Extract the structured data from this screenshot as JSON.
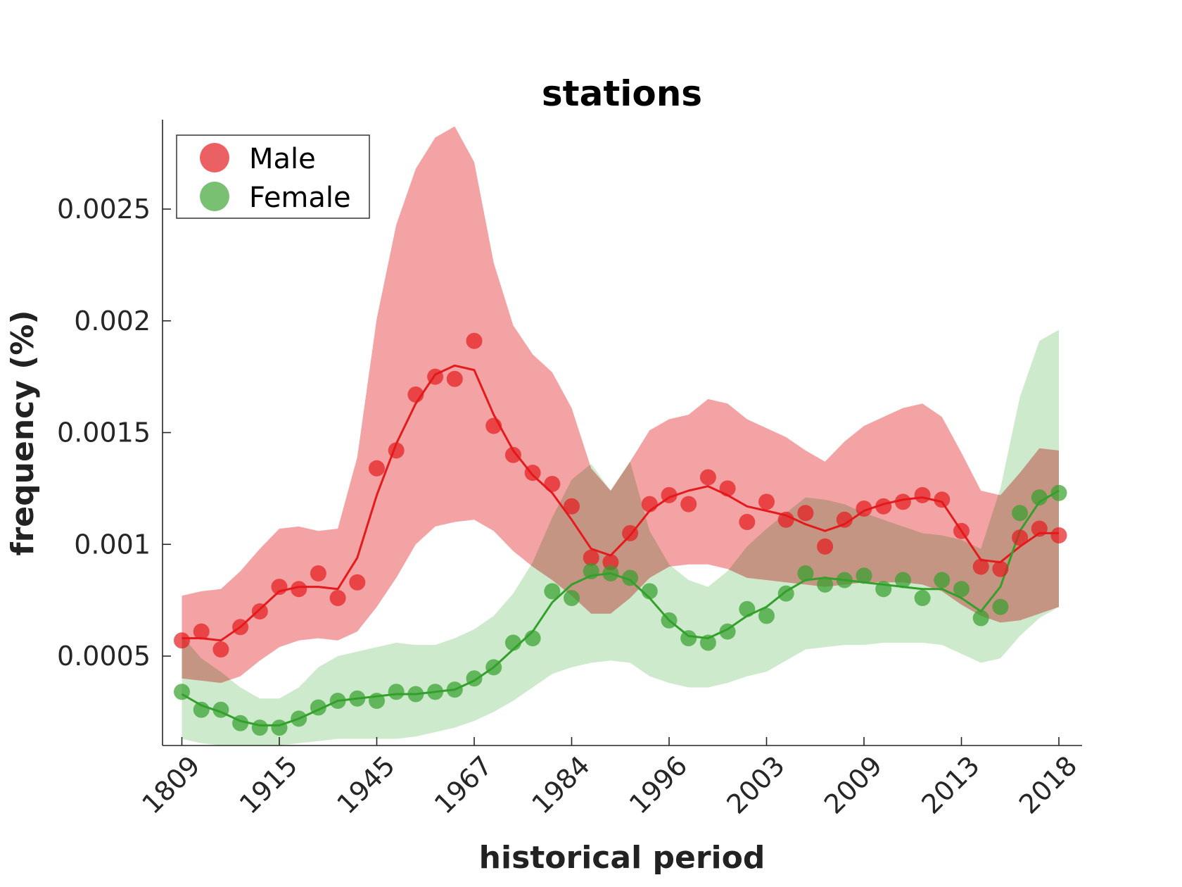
{
  "chart_data": {
    "type": "line",
    "title": "stations",
    "xlabel": "historical period",
    "ylabel": "frequency (%)",
    "ylim": [
      0.0001,
      0.0029
    ],
    "grid": false,
    "legend_placement": "top-left",
    "x_tick_labels": [
      "1809",
      "1915",
      "1945",
      "1967",
      "1984",
      "1996",
      "2003",
      "2009",
      "2013",
      "2018"
    ],
    "y_ticks": [
      0.0005,
      0.001,
      0.0015,
      0.002,
      0.0025
    ],
    "y_tick_labels": [
      "0.0005",
      "0.001",
      "0.0015",
      "0.002",
      "0.0025"
    ],
    "series": [
      {
        "name": "Male",
        "color": "#e41a1c",
        "band_color": "#f4a3a4",
        "points": [
          0.00057,
          0.00061,
          0.00053,
          0.00063,
          0.0007,
          0.00081,
          0.0008,
          0.00087,
          0.00076,
          0.00083,
          0.00134,
          0.00142,
          0.00167,
          0.00175,
          0.00174,
          0.00191,
          0.00153,
          0.0014,
          0.00132,
          0.00127,
          0.00117,
          0.00094,
          0.00092,
          0.00105,
          0.00118,
          0.00122,
          0.00118,
          0.0013,
          0.00125,
          0.0011,
          0.00119,
          0.00111,
          0.00114,
          0.00099,
          0.00111,
          0.00116,
          0.00117,
          0.00119,
          0.00122,
          0.0012,
          0.00106,
          0.0009,
          0.00089,
          0.00103,
          0.00107,
          0.00104
        ],
        "line": [
          0.00058,
          0.00058,
          0.00057,
          0.00063,
          0.00071,
          0.00079,
          0.00081,
          0.00081,
          0.0008,
          0.00094,
          0.00122,
          0.00145,
          0.00163,
          0.00176,
          0.0018,
          0.00178,
          0.00158,
          0.00142,
          0.00131,
          0.00123,
          0.00111,
          0.00098,
          0.00095,
          0.00104,
          0.00115,
          0.00121,
          0.00124,
          0.00126,
          0.00122,
          0.00117,
          0.00115,
          0.00113,
          0.00109,
          0.00106,
          0.00109,
          0.00115,
          0.00118,
          0.0012,
          0.00121,
          0.00119,
          0.00106,
          0.00093,
          0.00092,
          0.00099,
          0.00105,
          0.00105
        ],
        "band_upper": [
          0.00077,
          0.00079,
          0.0008,
          0.00088,
          0.00098,
          0.00107,
          0.00108,
          0.00106,
          0.00107,
          0.00139,
          0.00201,
          0.00243,
          0.00268,
          0.00282,
          0.00287,
          0.00271,
          0.00226,
          0.00198,
          0.00185,
          0.00177,
          0.00161,
          0.00134,
          0.00124,
          0.00137,
          0.00151,
          0.00156,
          0.00158,
          0.00165,
          0.00163,
          0.00156,
          0.00152,
          0.00148,
          0.00142,
          0.00137,
          0.00146,
          0.00153,
          0.00157,
          0.00161,
          0.00163,
          0.00157,
          0.00141,
          0.00124,
          0.00122,
          0.00132,
          0.00143,
          0.00142
        ],
        "band_lower": [
          0.0004,
          0.00039,
          0.00038,
          0.00041,
          0.00048,
          0.00054,
          0.00057,
          0.00058,
          0.00057,
          0.00061,
          0.00072,
          0.00085,
          0.001,
          0.00108,
          0.0011,
          0.00111,
          0.00106,
          0.00097,
          0.0009,
          0.00084,
          0.00077,
          0.00069,
          0.00069,
          0.00076,
          0.00085,
          0.0009,
          0.00091,
          0.00091,
          0.00089,
          0.00085,
          0.00084,
          0.00083,
          0.00082,
          0.00081,
          0.00082,
          0.00083,
          0.00083,
          0.00083,
          0.00082,
          0.00079,
          0.00073,
          0.00068,
          0.00065,
          0.00066,
          0.00069,
          0.00072
        ]
      },
      {
        "name": "Female",
        "color": "#33a02c",
        "band_color": "#a6d9a2",
        "points": [
          0.00034,
          0.00026,
          0.00026,
          0.0002,
          0.00018,
          0.00018,
          0.00022,
          0.00027,
          0.0003,
          0.00031,
          0.0003,
          0.00034,
          0.00033,
          0.00034,
          0.00035,
          0.0004,
          0.00045,
          0.00056,
          0.00058,
          0.00079,
          0.00076,
          0.00088,
          0.00087,
          0.00085,
          0.00079,
          0.00066,
          0.00058,
          0.00056,
          0.00061,
          0.00071,
          0.00068,
          0.00078,
          0.00087,
          0.00082,
          0.00084,
          0.00086,
          0.0008,
          0.00084,
          0.00076,
          0.00084,
          0.0008,
          0.00067,
          0.00072,
          0.00114,
          0.00121,
          0.00123
        ],
        "line": [
          0.00033,
          0.00028,
          0.00025,
          0.00021,
          0.00019,
          0.00019,
          0.00022,
          0.00026,
          0.0003,
          0.00031,
          0.00032,
          0.00033,
          0.00033,
          0.00034,
          0.00035,
          0.00039,
          0.00045,
          0.00053,
          0.00061,
          0.00074,
          0.00082,
          0.00086,
          0.00087,
          0.00084,
          0.00076,
          0.00066,
          0.00059,
          0.00058,
          0.00062,
          0.00068,
          0.00072,
          0.00079,
          0.00084,
          0.00085,
          0.00084,
          0.00083,
          0.00082,
          0.00081,
          0.0008,
          0.0008,
          0.00076,
          0.0007,
          0.00081,
          0.00106,
          0.00119,
          0.00124
        ],
        "band_upper": [
          0.00059,
          0.00049,
          0.00043,
          0.00036,
          0.00031,
          0.00031,
          0.00036,
          0.00045,
          0.0005,
          0.00052,
          0.00054,
          0.00056,
          0.00055,
          0.00055,
          0.00058,
          0.00062,
          0.00068,
          0.00078,
          0.00092,
          0.00112,
          0.00129,
          0.00136,
          0.00124,
          0.00137,
          0.00106,
          0.00091,
          0.00084,
          0.00081,
          0.00088,
          0.00099,
          0.00107,
          0.00114,
          0.00121,
          0.0012,
          0.00118,
          0.00114,
          0.00111,
          0.00108,
          0.00105,
          0.00104,
          0.00102,
          0.00098,
          0.00125,
          0.00166,
          0.00191,
          0.00196
        ],
        "band_lower": [
          0.00013,
          0.00011,
          0.0001,
          0.0001,
          0.0001,
          0.0001,
          0.00011,
          0.00012,
          0.00013,
          0.00013,
          0.00013,
          0.00013,
          0.00014,
          0.00016,
          0.00018,
          0.00021,
          0.00025,
          0.0003,
          0.00036,
          0.00042,
          0.00045,
          0.00047,
          0.00048,
          0.00047,
          0.00041,
          0.00038,
          0.00036,
          0.00036,
          0.00038,
          0.00041,
          0.00043,
          0.00048,
          0.00053,
          0.00054,
          0.00055,
          0.00055,
          0.00056,
          0.00056,
          0.00056,
          0.00055,
          0.00051,
          0.00047,
          0.00049,
          0.00059,
          0.00067,
          0.00072
        ]
      }
    ]
  }
}
